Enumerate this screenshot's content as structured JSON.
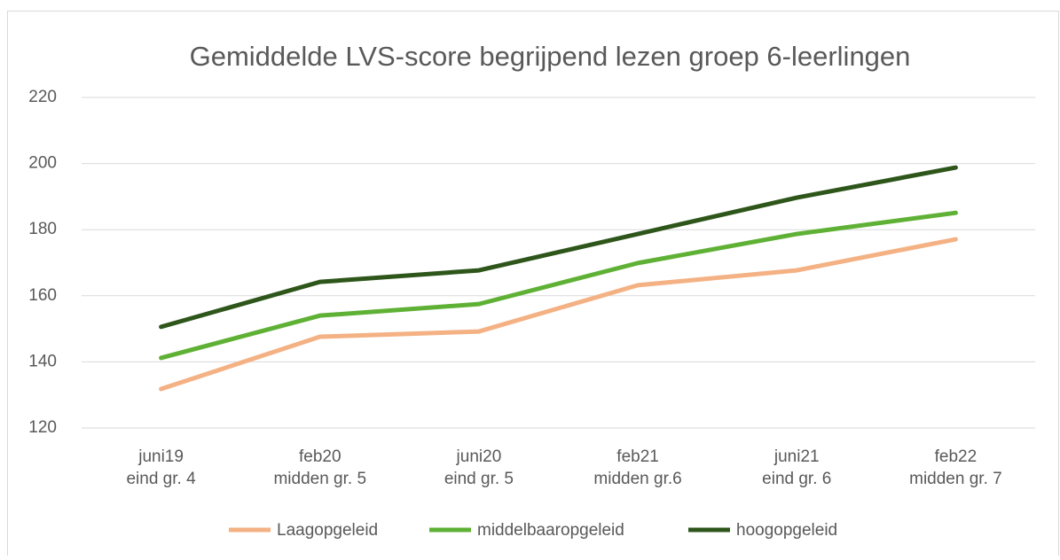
{
  "chart_data": {
    "type": "line",
    "title": "Gemiddelde LVS-score begrijpend lezen groep 6-leerlingen",
    "categories": [
      [
        "juni19",
        "eind gr. 4"
      ],
      [
        "feb20",
        "midden gr. 5"
      ],
      [
        "juni20",
        "eind gr. 5"
      ],
      [
        "feb21",
        "midden gr.6"
      ],
      [
        "juni21",
        "eind gr. 6"
      ],
      [
        "feb22",
        "midden gr. 7"
      ]
    ],
    "series": [
      {
        "name": "Laagopgeleid",
        "color": "#f4b183",
        "values": [
          131.8,
          147.6,
          149.2,
          163.2,
          167.7,
          177.1
        ]
      },
      {
        "name": "middelbaaropgeleid",
        "color": "#5fb135",
        "values": [
          141.2,
          154.0,
          157.5,
          169.9,
          178.7,
          185.1
        ]
      },
      {
        "name": "hoogopgeleid",
        "color": "#2e561b",
        "values": [
          150.6,
          164.2,
          167.7,
          178.7,
          189.7,
          198.8
        ]
      }
    ],
    "ylim": [
      120,
      220
    ],
    "yticks": [
      120,
      140,
      160,
      180,
      200,
      220
    ],
    "grid": true,
    "legend": "bottom"
  }
}
